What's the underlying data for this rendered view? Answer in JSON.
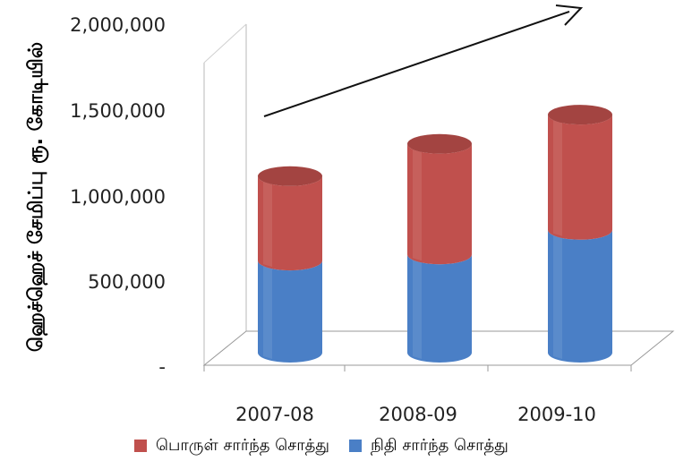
{
  "chart_data": {
    "type": "bar",
    "stacked": true,
    "three_d": true,
    "shape": "cylinder",
    "categories": [
      "2007-08",
      "2008-09",
      "2009-10"
    ],
    "series": [
      {
        "name": "நிதி சார்ந்த சொத்து",
        "color": "#4a7fc6",
        "values": [
          600000,
          640000,
          800000
        ]
      },
      {
        "name": "பொருள் சார்ந்த சொத்து",
        "color": "#c0504d",
        "values": [
          550000,
          720000,
          750000
        ]
      }
    ],
    "ylabel": "ஹெச்ஹெச் சேமிப்பு ரூ. கோடியில்",
    "ytick_labels": [
      "-",
      "500,000",
      "1,000,000",
      "1,500,000",
      "2,000,000"
    ],
    "ylim": [
      0,
      2000000
    ],
    "annotation": "upward trend arrow",
    "legend_position": "bottom"
  }
}
